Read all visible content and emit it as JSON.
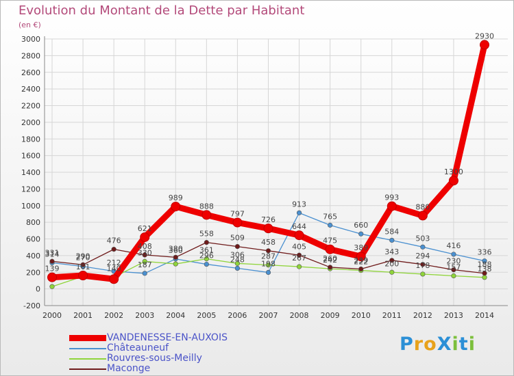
{
  "title": "Evolution du Montant de la Dette par Habitant",
  "unit_label": "(en €)",
  "logo": {
    "text": "ProXiti",
    "letters": [
      "P",
      "r",
      "o",
      "X",
      "i",
      "t",
      "i"
    ],
    "colors": [
      "#2b8fd6",
      "#e8a21b",
      "#e8a21b",
      "#2b8fd6",
      "#7cbf3c",
      "#2b8fd6",
      "#7cbf3c"
    ]
  },
  "chart_data": {
    "type": "line",
    "title": "Evolution du Montant de la Dette par Habitant",
    "ylabel": "(en €)",
    "xlabel": "",
    "ylim": [
      -200,
      3000
    ],
    "y_ticks": [
      -200,
      0,
      200,
      400,
      600,
      800,
      1000,
      1200,
      1400,
      1600,
      1800,
      2000,
      2200,
      2400,
      2600,
      2800,
      3000
    ],
    "x": [
      "2000",
      "2001",
      "2002",
      "2003",
      "2004",
      "2005",
      "2006",
      "2007",
      "2008",
      "2009",
      "2010",
      "2011",
      "2012",
      "2013",
      "2014"
    ],
    "grid": true,
    "legend_position": "bottom-left",
    "series": [
      {
        "name": "VANDENESSE-EN-AUXOIS",
        "color": "#ee0000",
        "values": [
          139,
          161,
          118,
          621,
          989,
          888,
          797,
          726,
          644,
          475,
          389,
          993,
          880,
          1300,
          2930
        ],
        "labels": [
          "139",
          "161",
          "",
          "621",
          "989",
          "888",
          "797",
          "726",
          "644",
          "475",
          "389",
          "993",
          "880",
          "1300",
          "2930"
        ]
      },
      {
        "name": "Châteauneuf",
        "color": "#4a90d0",
        "values": [
          314,
          270,
          212,
          187,
          360,
          296,
          248,
          198,
          913,
          765,
          660,
          584,
          503,
          416,
          336
        ],
        "labels": [
          "314",
          "270",
          "212",
          "187",
          "360",
          "296",
          "248",
          "198",
          "913",
          "765",
          "660",
          "584",
          "503",
          "416",
          "336"
        ]
      },
      {
        "name": "Rouvres-sous-Meilly",
        "color": "#8fd43a",
        "values": [
          28,
          151,
          140,
          330,
          300,
          361,
          306,
          287,
          267,
          242,
          222,
          200,
          178,
          157,
          138
        ],
        "labels": [
          "",
          "",
          "140",
          "330",
          "",
          "361",
          "306",
          "287",
          "267",
          "242",
          "222",
          "200",
          "178",
          "157",
          "138"
        ]
      },
      {
        "name": "Maconge",
        "color": "#6e1a1a",
        "values": [
          331,
          290,
          476,
          408,
          380,
          558,
          509,
          458,
          405,
          260,
          239,
          343,
          294,
          230,
          188
        ],
        "labels": [
          "331",
          "290",
          "476",
          "408",
          "380",
          "558",
          "509",
          "458",
          "405",
          "260",
          "239",
          "343",
          "294",
          "230",
          "188"
        ]
      }
    ]
  }
}
